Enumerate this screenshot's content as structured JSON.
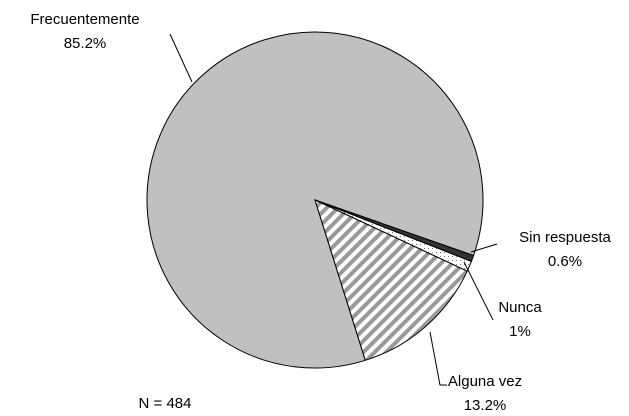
{
  "chart_data": {
    "type": "pie",
    "categories": [
      "Frecuentemente",
      "Sin respuesta",
      "Nunca",
      "Alguna vez"
    ],
    "values": [
      85.2,
      0.6,
      1,
      13.2
    ],
    "value_labels": [
      "85.2%",
      "0.6%",
      "1%",
      "13.2%"
    ],
    "colors": [
      "#c0c0c0",
      "#333333",
      "#ffffff",
      "#ffffff"
    ],
    "patterns": [
      "solid",
      "solid",
      "dots",
      "stripes"
    ],
    "annotation": "N = 484"
  }
}
